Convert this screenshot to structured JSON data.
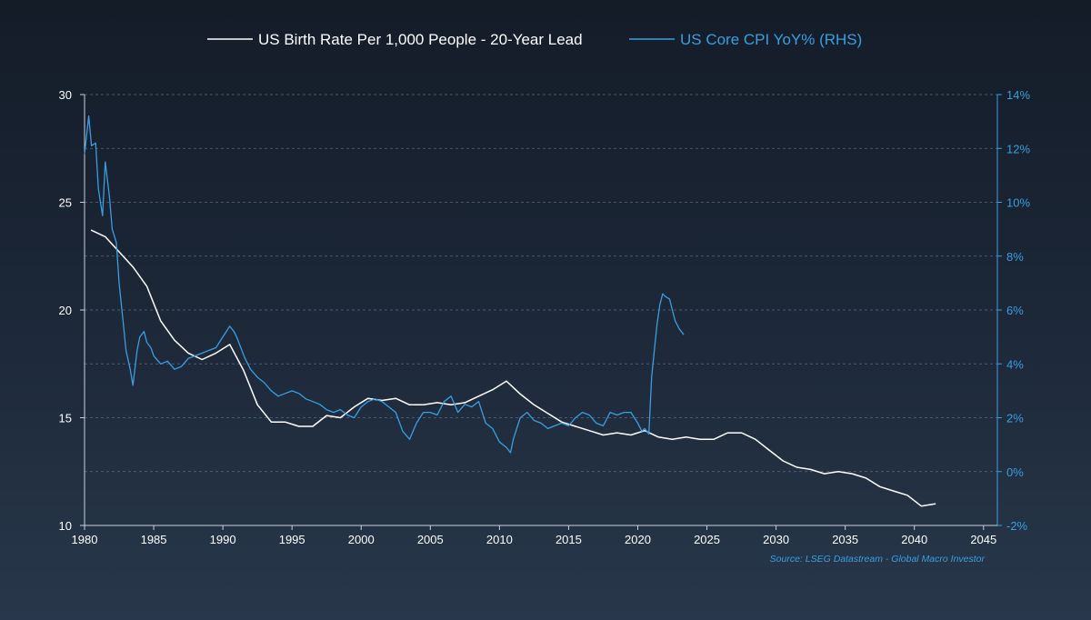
{
  "chart_data": {
    "type": "line",
    "source": "Source: LSEG Datastream - Global Macro Investor",
    "x_axis": {
      "range": [
        1980,
        2046
      ],
      "ticks": [
        "1980",
        "1985",
        "1990",
        "1995",
        "2000",
        "2005",
        "2010",
        "2015",
        "2020",
        "2025",
        "2030",
        "2035",
        "2040",
        "2045"
      ]
    },
    "y_axis_left": {
      "range": [
        10,
        30
      ],
      "ticks": [
        "10",
        "15",
        "20",
        "25",
        "30"
      ]
    },
    "y_axis_right": {
      "range": [
        -2,
        14
      ],
      "ticks": [
        "-2%",
        "0%",
        "2%",
        "4%",
        "6%",
        "8%",
        "10%",
        "12%",
        "14%"
      ]
    },
    "series": [
      {
        "name": "US Birth Rate Per 1,000 People - 20-Year Lead",
        "axis": "left",
        "color": "#ffffff",
        "x": [
          1980.5,
          1981.5,
          1982.5,
          1983.5,
          1984.5,
          1985.5,
          1986.5,
          1987.5,
          1988.5,
          1989.5,
          1990.5,
          1991.5,
          1992.5,
          1993.5,
          1994.5,
          1995.5,
          1996.5,
          1997.5,
          1998.5,
          1999.5,
          2000.5,
          2001.5,
          2002.5,
          2003.5,
          2004.5,
          2005.5,
          2006.5,
          2007.5,
          2008.5,
          2009.5,
          2010.5,
          2011.5,
          2012.5,
          2013.5,
          2014.5,
          2015.5,
          2016.5,
          2017.5,
          2018.5,
          2019.5,
          2020.5,
          2021.5,
          2022.5,
          2023.5,
          2024.5,
          2025.5,
          2026.5,
          2027.5,
          2028.5,
          2029.5,
          2030.5,
          2031.5,
          2032.5,
          2033.5,
          2034.5,
          2035.5,
          2036.5,
          2037.5,
          2038.5,
          2039.5,
          2040.5,
          2041.5
        ],
        "values": [
          23.7,
          23.4,
          22.7,
          22.0,
          21.1,
          19.5,
          18.6,
          18.0,
          17.7,
          18.0,
          18.4,
          17.2,
          15.6,
          14.8,
          14.8,
          14.6,
          14.6,
          15.1,
          15.0,
          15.5,
          15.9,
          15.8,
          15.9,
          15.6,
          15.6,
          15.7,
          15.6,
          15.7,
          16.0,
          16.3,
          16.7,
          16.1,
          15.6,
          15.2,
          14.8,
          14.6,
          14.4,
          14.2,
          14.3,
          14.2,
          14.4,
          14.1,
          14.0,
          14.1,
          14.0,
          14.0,
          14.3,
          14.3,
          14.0,
          13.5,
          13.0,
          12.7,
          12.6,
          12.4,
          12.5,
          12.4,
          12.2,
          11.8,
          11.6,
          11.4,
          10.9,
          11.0
        ]
      },
      {
        "name": "US Core CPI YoY% (RHS)",
        "axis": "right",
        "color": "#3a9ee0",
        "x": [
          1980.0,
          1980.3,
          1980.5,
          1980.8,
          1981.0,
          1981.3,
          1981.5,
          1981.8,
          1982.0,
          1982.3,
          1982.5,
          1982.8,
          1983.0,
          1983.3,
          1983.5,
          1983.8,
          1984.0,
          1984.3,
          1984.5,
          1984.8,
          1985.0,
          1985.5,
          1986.0,
          1986.5,
          1987.0,
          1987.5,
          1988.0,
          1988.5,
          1989.0,
          1989.5,
          1990.0,
          1990.5,
          1990.8,
          1991.0,
          1991.3,
          1991.6,
          1992.0,
          1992.5,
          1993.0,
          1993.5,
          1994.0,
          1994.5,
          1995.0,
          1995.5,
          1996.0,
          1996.5,
          1997.0,
          1997.5,
          1998.0,
          1998.5,
          1999.0,
          1999.5,
          2000.0,
          2000.5,
          2001.0,
          2001.5,
          2002.0,
          2002.5,
          2003.0,
          2003.5,
          2004.0,
          2004.5,
          2005.0,
          2005.5,
          2006.0,
          2006.5,
          2007.0,
          2007.5,
          2008.0,
          2008.5,
          2009.0,
          2009.5,
          2010.0,
          2010.5,
          2010.8,
          2011.0,
          2011.5,
          2012.0,
          2012.5,
          2013.0,
          2013.5,
          2014.0,
          2014.5,
          2015.0,
          2015.5,
          2016.0,
          2016.5,
          2017.0,
          2017.5,
          2018.0,
          2018.5,
          2019.0,
          2019.5,
          2020.0,
          2020.3,
          2020.5,
          2020.8,
          2021.0,
          2021.2,
          2021.4,
          2021.6,
          2021.8,
          2022.0,
          2022.3,
          2022.5,
          2022.7,
          2023.0,
          2023.3
        ],
        "values": [
          11.8,
          13.2,
          12.1,
          12.2,
          10.5,
          9.5,
          11.5,
          10.2,
          9.0,
          8.5,
          7.0,
          5.5,
          4.5,
          3.8,
          3.2,
          4.5,
          5.0,
          5.2,
          4.8,
          4.6,
          4.3,
          4.0,
          4.1,
          3.8,
          3.9,
          4.2,
          4.3,
          4.4,
          4.5,
          4.6,
          5.0,
          5.4,
          5.2,
          5.0,
          4.6,
          4.2,
          3.8,
          3.5,
          3.3,
          3.0,
          2.8,
          2.9,
          3.0,
          2.9,
          2.7,
          2.6,
          2.5,
          2.3,
          2.2,
          2.3,
          2.1,
          2.0,
          2.4,
          2.6,
          2.7,
          2.6,
          2.4,
          2.2,
          1.5,
          1.2,
          1.8,
          2.2,
          2.2,
          2.1,
          2.6,
          2.8,
          2.2,
          2.5,
          2.4,
          2.6,
          1.8,
          1.6,
          1.1,
          0.9,
          0.7,
          1.2,
          2.0,
          2.2,
          1.9,
          1.8,
          1.6,
          1.7,
          1.8,
          1.7,
          2.0,
          2.2,
          2.1,
          1.8,
          1.7,
          2.2,
          2.1,
          2.2,
          2.2,
          1.8,
          1.5,
          1.6,
          1.4,
          3.5,
          4.5,
          5.5,
          6.2,
          6.6,
          6.5,
          6.4,
          6.0,
          5.6,
          5.3,
          5.1
        ]
      }
    ]
  }
}
